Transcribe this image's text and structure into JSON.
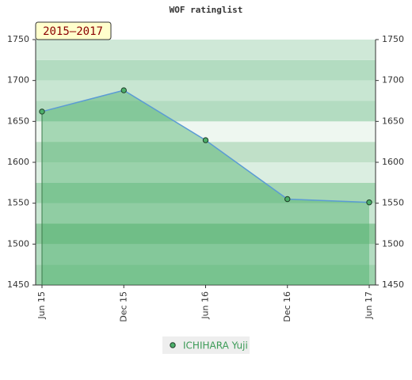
{
  "chart_data": {
    "type": "area",
    "title": "WOF ratinglist",
    "annotation": "2015–2017",
    "categories": [
      "Jun 15",
      "Dec 15",
      "Jun 16",
      "Dec 16",
      "Jun 17"
    ],
    "series": [
      {
        "name": "ICHIHARA Yuji",
        "color": "#4caf6a",
        "values": [
          1662,
          1688,
          1627,
          1555,
          1551
        ]
      }
    ],
    "ylim": [
      1450,
      1750
    ],
    "yticks": [
      1450,
      1500,
      1550,
      1600,
      1650,
      1700,
      1750
    ]
  }
}
